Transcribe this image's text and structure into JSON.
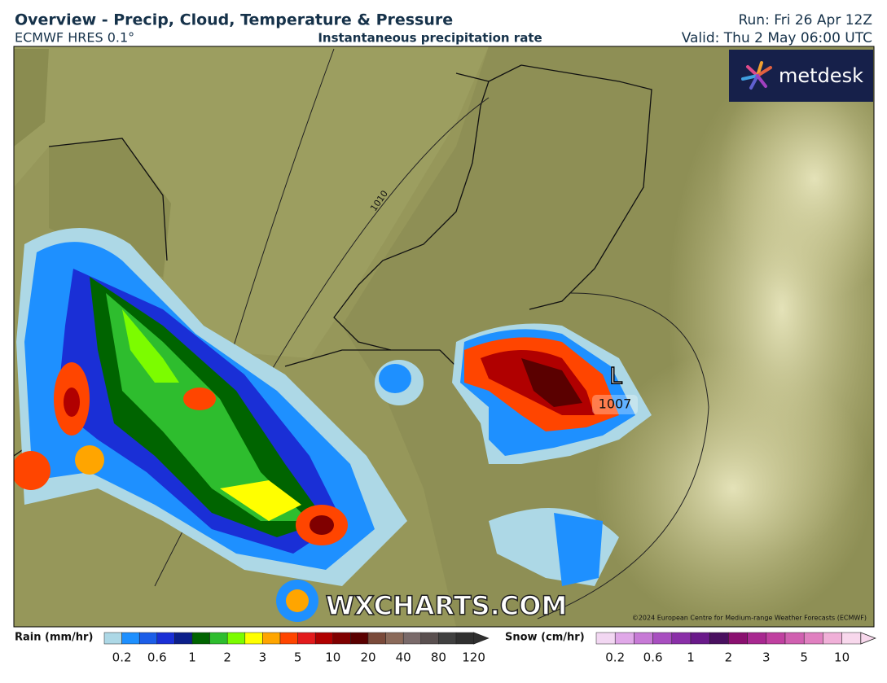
{
  "header": {
    "title": "Overview - Precip, Cloud, Temperature & Pressure",
    "model": "ECMWF HRES 0.1°",
    "subtitle": "Instantaneous precipitation rate",
    "run": "Run: Fri 26 Apr 12Z",
    "valid": "Valid: Thu 2 May 06:00 UTC"
  },
  "map": {
    "brand": "metdesk",
    "isobar_label": "1010",
    "low_symbol": "L",
    "low_pressure": "1007",
    "watermark": "WXCHARTS.COM",
    "copyright": "©2024 European Centre for Medium-range Weather Forecasts (ECMWF)"
  },
  "legend": {
    "rain": {
      "title": "Rain (mm/hr)",
      "ticks": [
        0.2,
        0.6,
        1,
        2,
        3,
        5,
        10,
        20,
        40,
        80,
        120
      ],
      "colors": [
        "#add8e6",
        "#1e90ff",
        "#1c5ee8",
        "#1a2fd6",
        "#0c1f8a",
        "#006400",
        "#2ebd2e",
        "#7cfc00",
        "#ffff00",
        "#ffa500",
        "#ff4500",
        "#e31a1c",
        "#b00000",
        "#800000",
        "#5a0000",
        "#7a4a3a",
        "#8b6a5a",
        "#7a6a6a",
        "#5a5050",
        "#404040",
        "#303030"
      ]
    },
    "snow": {
      "title": "Snow (cm/hr)",
      "ticks": [
        0.2,
        0.6,
        1,
        2,
        3,
        5,
        10
      ],
      "colors": [
        "#f2d7f2",
        "#e0a8e8",
        "#c77ad6",
        "#a84fc0",
        "#8a2fa8",
        "#6a1a8a",
        "#4a1060",
        "#8a1070",
        "#a82890",
        "#c040a0",
        "#d060b0",
        "#e080c0",
        "#f0b0d8",
        "#f8d8ec"
      ]
    }
  }
}
